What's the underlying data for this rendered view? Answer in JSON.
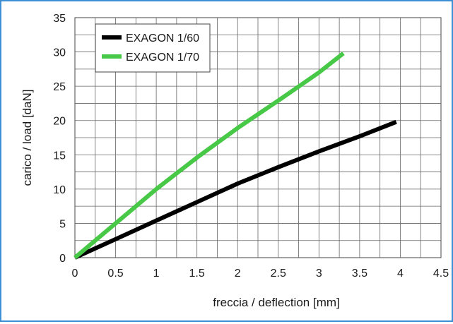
{
  "chart_data": {
    "type": "line",
    "xlabel": "freccia / deflection [mm]",
    "ylabel": "carico / load [daN]",
    "xlim": [
      0,
      4.5
    ],
    "ylim": [
      0,
      35
    ],
    "x_ticks": [
      "0",
      "0.5",
      "1",
      "1.5",
      "2",
      "2.5",
      "3",
      "3.5",
      "4",
      "4.5"
    ],
    "y_ticks": [
      "0",
      "5",
      "10",
      "15",
      "20",
      "25",
      "30",
      "35"
    ],
    "grid": true,
    "legend_position": "top-left",
    "series": [
      {
        "name": "EXAGON 1/60",
        "color": "#000000",
        "points": [
          [
            0,
            0
          ],
          [
            0.5,
            2.7
          ],
          [
            1,
            5.4
          ],
          [
            1.5,
            8.1
          ],
          [
            2,
            10.8
          ],
          [
            2.5,
            13.2
          ],
          [
            3,
            15.5
          ],
          [
            3.5,
            17.7
          ],
          [
            3.95,
            19.8
          ]
        ]
      },
      {
        "name": "EXAGON 1/70",
        "color": "#47c947",
        "points": [
          [
            0,
            0
          ],
          [
            0.5,
            5.0
          ],
          [
            1,
            10.0
          ],
          [
            1.5,
            14.6
          ],
          [
            2,
            18.9
          ],
          [
            2.5,
            22.9
          ],
          [
            3,
            27.0
          ],
          [
            3.3,
            29.8
          ]
        ]
      }
    ]
  }
}
